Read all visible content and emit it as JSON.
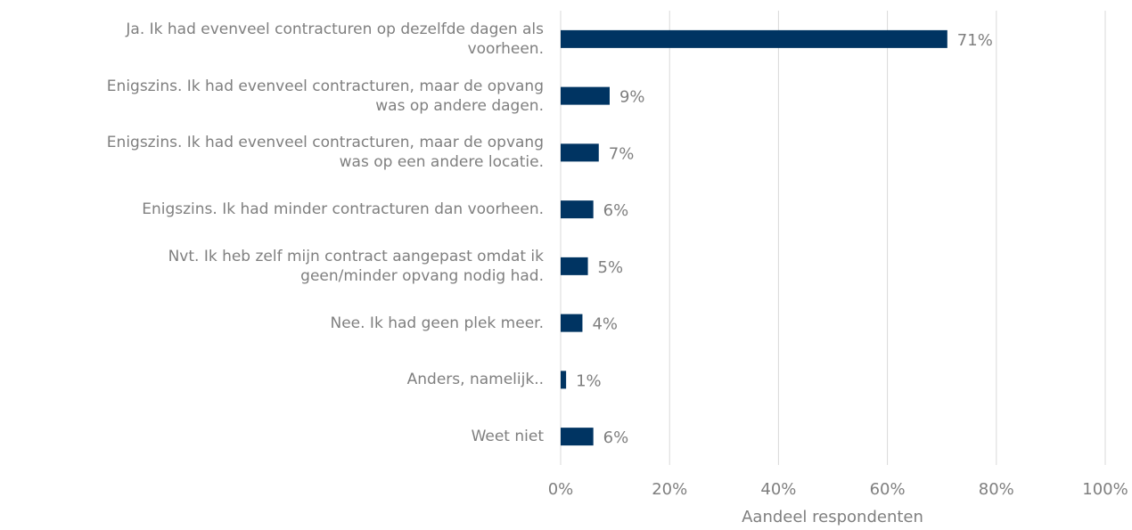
{
  "chart_data": {
    "type": "barh",
    "categories": [
      "Ja. Ik had evenveel contracturen op dezelfde dagen als\nvoorheen.",
      "Enigszins. Ik had evenveel contracturen, maar de opvang\nwas op andere dagen.",
      "Enigszins. Ik had evenveel contracturen, maar de opvang\nwas op een andere locatie.",
      "Enigszins. Ik had minder contracturen dan voorheen.",
      "Nvt. Ik heb zelf mijn contract aangepast omdat ik\ngeen/minder opvang nodig had.",
      "Nee. Ik had geen plek meer.",
      "Anders, namelijk..",
      "Weet niet"
    ],
    "values": [
      71,
      9,
      7,
      6,
      5,
      4,
      1,
      6
    ],
    "value_labels": [
      "71%",
      "9%",
      "7%",
      "6%",
      "5%",
      "4%",
      "1%",
      "6%"
    ],
    "color": "#003462",
    "xlim": [
      0,
      100
    ],
    "xticks": [
      {
        "value": 0,
        "label": "0%"
      },
      {
        "value": 20,
        "label": "20%"
      },
      {
        "value": 40,
        "label": "40%"
      },
      {
        "value": 60,
        "label": "60%"
      },
      {
        "value": 80,
        "label": "80%"
      },
      {
        "value": 100,
        "label": "100%"
      }
    ],
    "grid": true,
    "xlabel": "Aandeel respondenten"
  }
}
